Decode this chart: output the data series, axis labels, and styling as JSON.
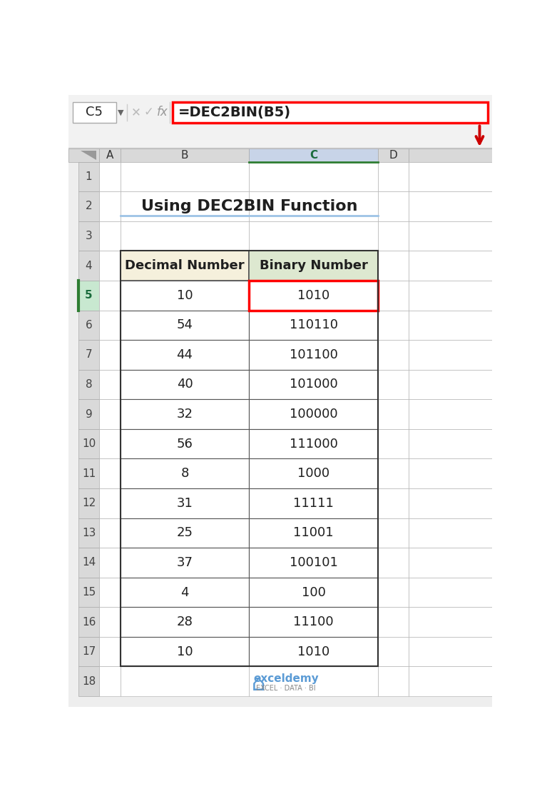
{
  "title": "Using DEC2BIN Function",
  "formula_bar_cell": "C5",
  "formula_bar_text": "=DEC2BIN(B5)",
  "col_headers": [
    "A",
    "B",
    "C",
    "D"
  ],
  "row_numbers": [
    "1",
    "2",
    "3",
    "4",
    "5",
    "6",
    "7",
    "8",
    "9",
    "10",
    "11",
    "12",
    "13",
    "14",
    "15",
    "16",
    "17",
    "18"
  ],
  "table_header": [
    "Decimal Number",
    "Binary Number"
  ],
  "decimal_col": [
    "10",
    "54",
    "44",
    "40",
    "32",
    "56",
    "8",
    "31",
    "25",
    "37",
    "4",
    "28",
    "10"
  ],
  "binary_col": [
    "1010",
    "110110",
    "101100",
    "101000",
    "100000",
    "111000",
    "1000",
    "11111",
    "11001",
    "100101",
    "100",
    "11100",
    "1010"
  ],
  "header_bg_decimal": "#F5F0DC",
  "header_bg_binary": "#DDE8D0",
  "highlight_red_border": "#FF0000",
  "formula_box_color": "#FF0000",
  "arrow_color": "#CC0000",
  "title_color": "#1F1F1F",
  "line_color_blue": "#9DC3E6",
  "row_header_bg": "#D9D9D9",
  "col_header_bg": "#D9D9D9",
  "selected_col_bg": "#C8D4E8",
  "selected_row_bg": "#C8E8D0",
  "bg_color": "#FFFFFF",
  "logo_color": "#5B9BD5",
  "formula_bar_bg": "#F2F2F2",
  "fb_separator_color": "#CCCCCC"
}
